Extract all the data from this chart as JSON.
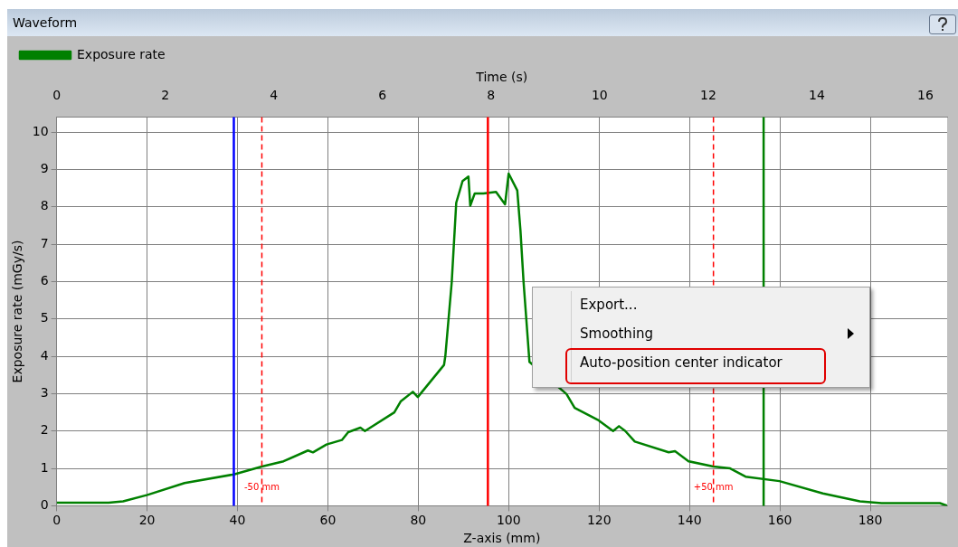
{
  "chart_data": {
    "type": "line",
    "title": "Waveform",
    "xlabel": "Z-axis (mm)",
    "ylabel": "Exposure rate (mGy/s)",
    "x2label": "Time (s)",
    "xlim": [
      0,
      197
    ],
    "xticks": [
      0,
      20,
      40,
      60,
      80,
      100,
      120,
      140,
      160,
      180
    ],
    "x2lim": [
      0,
      16.4
    ],
    "x2ticks": [
      0,
      2,
      4,
      6,
      8,
      10,
      12,
      14,
      16
    ],
    "ylim": [
      0,
      10.4
    ],
    "yticks": [
      0,
      1,
      2,
      3,
      4,
      5,
      6,
      7,
      8,
      9,
      10
    ],
    "grid": true,
    "legend": "top left",
    "marker": "none",
    "line_style": "solid",
    "series": [
      {
        "name": "Exposure rate",
        "color": "#008000",
        "x": [
          0,
          11.5,
          14.7,
          20.1,
          28.3,
          39.2,
          45.4,
          50.2,
          55.6,
          56.7,
          59.7,
          63.1,
          64.5,
          67.2,
          68.2,
          74.7,
          76.1,
          78.8,
          79.9,
          85.7,
          86,
          87.4,
          88.4,
          89.8,
          91.1,
          91.5,
          92.5,
          94.4,
          97.2,
          99.2,
          100,
          101.9,
          102.6,
          103.3,
          104.6,
          112.8,
          114.6,
          119.7,
          123.1,
          124.4,
          125.8,
          127.9,
          135.4,
          136.8,
          139.8,
          145.3,
          149,
          152.4,
          159.9,
          169.5,
          177.7,
          182.5,
          195.4,
          197
        ],
        "values": [
          0.08,
          0.08,
          0.12,
          0.29,
          0.61,
          0.84,
          1.05,
          1.19,
          1.48,
          1.43,
          1.64,
          1.76,
          1.97,
          2.09,
          2.0,
          2.5,
          2.79,
          3.05,
          2.91,
          3.77,
          4.02,
          5.98,
          8.11,
          8.69,
          8.81,
          8.03,
          8.36,
          8.36,
          8.4,
          8.07,
          8.89,
          8.44,
          7.38,
          5.98,
          3.85,
          2.99,
          2.62,
          2.3,
          2.0,
          2.13,
          2.0,
          1.72,
          1.43,
          1.46,
          1.19,
          1.05,
          1.0,
          0.78,
          0.66,
          0.33,
          0.12,
          0.07,
          0.07,
          0
        ]
      }
    ],
    "ref_lines": [
      {
        "axis": "x",
        "value": 39.2,
        "label": null,
        "color": "#0000ff",
        "line_style": "solid"
      },
      {
        "axis": "x",
        "value": 45.4,
        "label": "-50 mm",
        "color": "#ff0000",
        "line_style": "dashed"
      },
      {
        "axis": "x",
        "value": 95.4,
        "label": null,
        "color": "#ff0000",
        "line_style": "solid"
      },
      {
        "axis": "x",
        "value": 145.3,
        "label": "+50 mm",
        "color": "#ff0000",
        "line_style": "dashed"
      },
      {
        "axis": "x",
        "value": 156.4,
        "label": null,
        "color": "#008000",
        "line_style": "solid"
      }
    ],
    "annotations": [
      "Export...",
      "Smoothing",
      "Auto-position center indicator"
    ]
  }
}
